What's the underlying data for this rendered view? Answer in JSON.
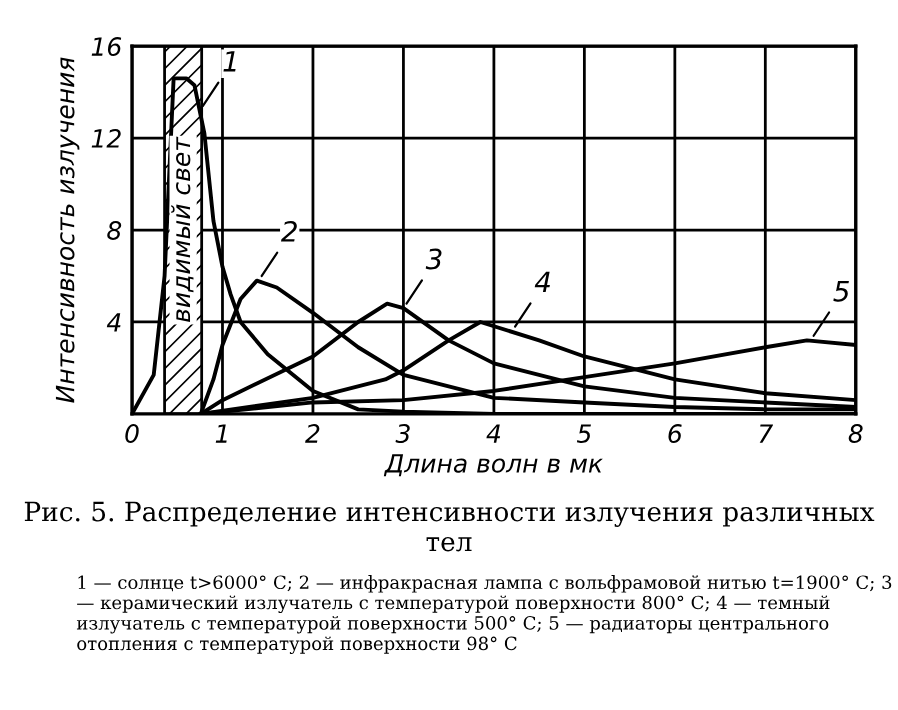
{
  "chart_data": {
    "type": "line",
    "title": "Рис. 5. Распределение интенсивности излучения различных тел",
    "xlabel": "Длина волн в мк",
    "ylabel": "Интенсивность излучения",
    "x": [
      0,
      0.24,
      0.36,
      0.46,
      0.6,
      0.69,
      0.8,
      0.9,
      1.0,
      1.09,
      1.2,
      1.5,
      2,
      2.5,
      3,
      4,
      5,
      6,
      7,
      8
    ],
    "series": [
      {
        "color": "#000000",
        "values": [
          0,
          1.7,
          6,
          14.6,
          14.6,
          14.3,
          12.2,
          8.4,
          6.4,
          5.2,
          4.0,
          2.6,
          1.0,
          0.2,
          0.1,
          0,
          0,
          0,
          0,
          0
        ]
      },
      {
        "color": "#000000",
        "x": [
          0.76,
          0.9,
          1.0,
          1.2,
          1.38,
          1.6,
          2,
          2.5,
          3,
          4,
          5,
          6,
          7,
          8
        ],
        "values": [
          0,
          1.5,
          3.0,
          5.0,
          5.8,
          5.5,
          4.4,
          2.9,
          1.7,
          0.7,
          0.5,
          0.3,
          0.2,
          0.2
        ]
      },
      {
        "color": "#000000",
        "x": [
          0.76,
          1,
          2,
          2.5,
          2.82,
          3,
          3.5,
          4,
          5,
          6,
          7,
          8
        ],
        "values": [
          0,
          0.6,
          2.5,
          4.0,
          4.8,
          4.6,
          3.2,
          2.2,
          1.2,
          0.7,
          0.5,
          0.3
        ]
      },
      {
        "color": "#000000",
        "x": [
          0.76,
          2,
          2.8,
          3,
          3.5,
          3.85,
          4.5,
          5,
          6,
          7,
          8
        ],
        "values": [
          0,
          0.7,
          1.5,
          1.9,
          3.2,
          4.0,
          3.2,
          2.5,
          1.5,
          0.9,
          0.6
        ]
      },
      {
        "color": "#000000",
        "x": [
          0.76,
          2,
          3,
          4,
          5,
          6,
          7,
          7.46,
          8
        ],
        "values": [
          0,
          0.5,
          0.6,
          1.0,
          1.6,
          2.2,
          2.9,
          3.2,
          3.0
        ]
      }
    ],
    "xlim": [
      0,
      8
    ],
    "ylim": [
      0,
      16
    ],
    "xticks": [
      0,
      1,
      2,
      3,
      4,
      5,
      6,
      7,
      8
    ],
    "yticks": [
      4,
      8,
      12,
      16
    ],
    "grid": true,
    "marker": "none",
    "line_style": "solid",
    "bands": [
      {
        "axis": "x",
        "from": 0.36,
        "to": 0.77,
        "label": "видимый свет",
        "color": "#000000"
      }
    ],
    "annotations": [
      {
        "text": "1",
        "x": 0.75,
        "y": 13.2
      },
      {
        "text": "2",
        "x": 1.4,
        "y": 5.8
      },
      {
        "text": "3",
        "x": 3.0,
        "y": 4.6
      },
      {
        "text": "4",
        "x": 4.2,
        "y": 3.6
      },
      {
        "text": "5",
        "x": 7.5,
        "y": 3.2
      },
      "1 — солнце t>6000° C; 2 — инфракрасная лампа с вольфрамовой нитью t=1900° C; 3 — керамический излучатель с температурой поверхности 800° C; 4 — темный излучатель с температурой поверхности 500° C; 5 — радиаторы центрального отопления с температурой поверхности 98° C"
    ]
  }
}
